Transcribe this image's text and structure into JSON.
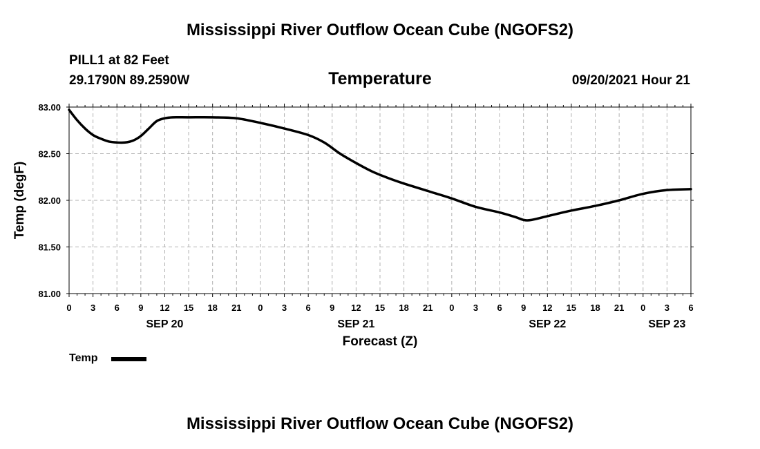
{
  "header": {
    "main_title": "Mississippi River Outflow Ocean Cube (NGOFS2)",
    "station_line": "PILL1 at 82 Feet",
    "coords": "29.1790N  89.2590W",
    "variable": "Temperature",
    "datetime": "09/20/2021 Hour 21"
  },
  "footer": {
    "main_title": "Mississippi River Outflow Ocean Cube (NGOFS2)"
  },
  "legend": {
    "label": "Temp"
  },
  "colors": {
    "line": "#000000",
    "grid": "#b0b0b0"
  },
  "chart_data": {
    "type": "line",
    "title": "Temperature",
    "xlabel": "Forecast (Z)",
    "ylabel": "Temp (degF)",
    "xlim": [
      0,
      78
    ],
    "ylim": [
      81.0,
      83.0
    ],
    "y_ticks": [
      "81.00",
      "81.50",
      "82.00",
      "82.50",
      "83.00"
    ],
    "y_tick_values": [
      81.0,
      81.5,
      82.0,
      82.5,
      83.0
    ],
    "x_tick_labels": [
      "0",
      "3",
      "6",
      "9",
      "12",
      "15",
      "18",
      "21",
      "0",
      "3",
      "6",
      "9",
      "12",
      "15",
      "18",
      "21",
      "0",
      "3",
      "6",
      "9",
      "12",
      "15",
      "18",
      "21",
      "0",
      "3",
      "6"
    ],
    "date_labels": [
      {
        "label": "SEP 20",
        "hour": 12
      },
      {
        "label": "SEP 21",
        "hour": 36
      },
      {
        "label": "SEP 22",
        "hour": 60
      },
      {
        "label": "SEP 23",
        "hour": 75
      }
    ],
    "grid": true,
    "series": [
      {
        "name": "Temp",
        "x": [
          0,
          1,
          2,
          3,
          4,
          5,
          6,
          7,
          8,
          9,
          10,
          11,
          12,
          13,
          15,
          18,
          21,
          24,
          27,
          30,
          32,
          34,
          36,
          38,
          40,
          42,
          45,
          48,
          51,
          54,
          56,
          57,
          58,
          60,
          63,
          66,
          69,
          72,
          75,
          78
        ],
        "y": [
          82.97,
          82.86,
          82.77,
          82.7,
          82.66,
          82.63,
          82.62,
          82.62,
          82.64,
          82.69,
          82.77,
          82.85,
          82.88,
          82.89,
          82.89,
          82.89,
          82.88,
          82.83,
          82.77,
          82.7,
          82.62,
          82.5,
          82.4,
          82.31,
          82.24,
          82.18,
          82.1,
          82.02,
          81.93,
          81.87,
          81.82,
          81.79,
          81.79,
          81.83,
          81.89,
          81.94,
          82.0,
          82.07,
          82.11,
          82.12
        ]
      }
    ]
  }
}
